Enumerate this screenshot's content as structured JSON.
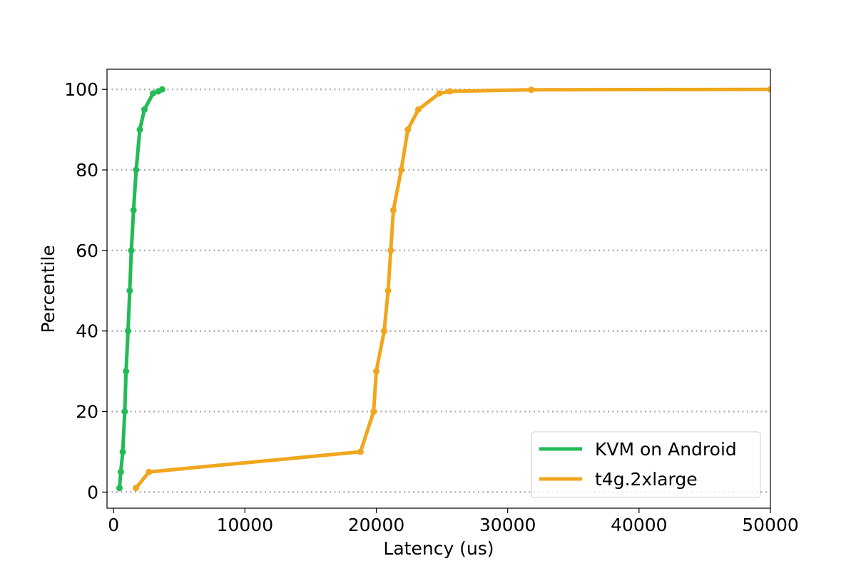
{
  "chart_data": {
    "type": "line",
    "title": "",
    "xlabel": "Latency (us)",
    "ylabel": "Percentile",
    "xlim": [
      -500,
      50000
    ],
    "ylim": [
      -4,
      105
    ],
    "x_ticks": [
      0,
      10000,
      20000,
      30000,
      40000,
      50000
    ],
    "y_ticks": [
      0,
      20,
      40,
      60,
      80,
      100
    ],
    "grid": "horizontal dotted",
    "legend_position": "lower-right",
    "series": [
      {
        "name": "KVM on Android",
        "color": "#22bb55",
        "points": [
          [
            450,
            1
          ],
          [
            550,
            5
          ],
          [
            700,
            10
          ],
          [
            850,
            20
          ],
          [
            950,
            30
          ],
          [
            1100,
            40
          ],
          [
            1230,
            50
          ],
          [
            1350,
            60
          ],
          [
            1520,
            70
          ],
          [
            1720,
            80
          ],
          [
            2000,
            90
          ],
          [
            2350,
            95
          ],
          [
            3000,
            99
          ],
          [
            3400,
            99.5
          ],
          [
            3700,
            100
          ]
        ]
      },
      {
        "name": "t4g.2xlarge",
        "color": "#f0a61e",
        "points": [
          [
            1700,
            1
          ],
          [
            2700,
            5
          ],
          [
            18800,
            10
          ],
          [
            19800,
            20
          ],
          [
            20000,
            30
          ],
          [
            20600,
            40
          ],
          [
            20900,
            50
          ],
          [
            21100,
            60
          ],
          [
            21300,
            70
          ],
          [
            21900,
            80
          ],
          [
            22400,
            90
          ],
          [
            23200,
            95
          ],
          [
            24800,
            99
          ],
          [
            25600,
            99.5
          ],
          [
            31800,
            99.9
          ],
          [
            50000,
            100
          ]
        ]
      }
    ]
  }
}
